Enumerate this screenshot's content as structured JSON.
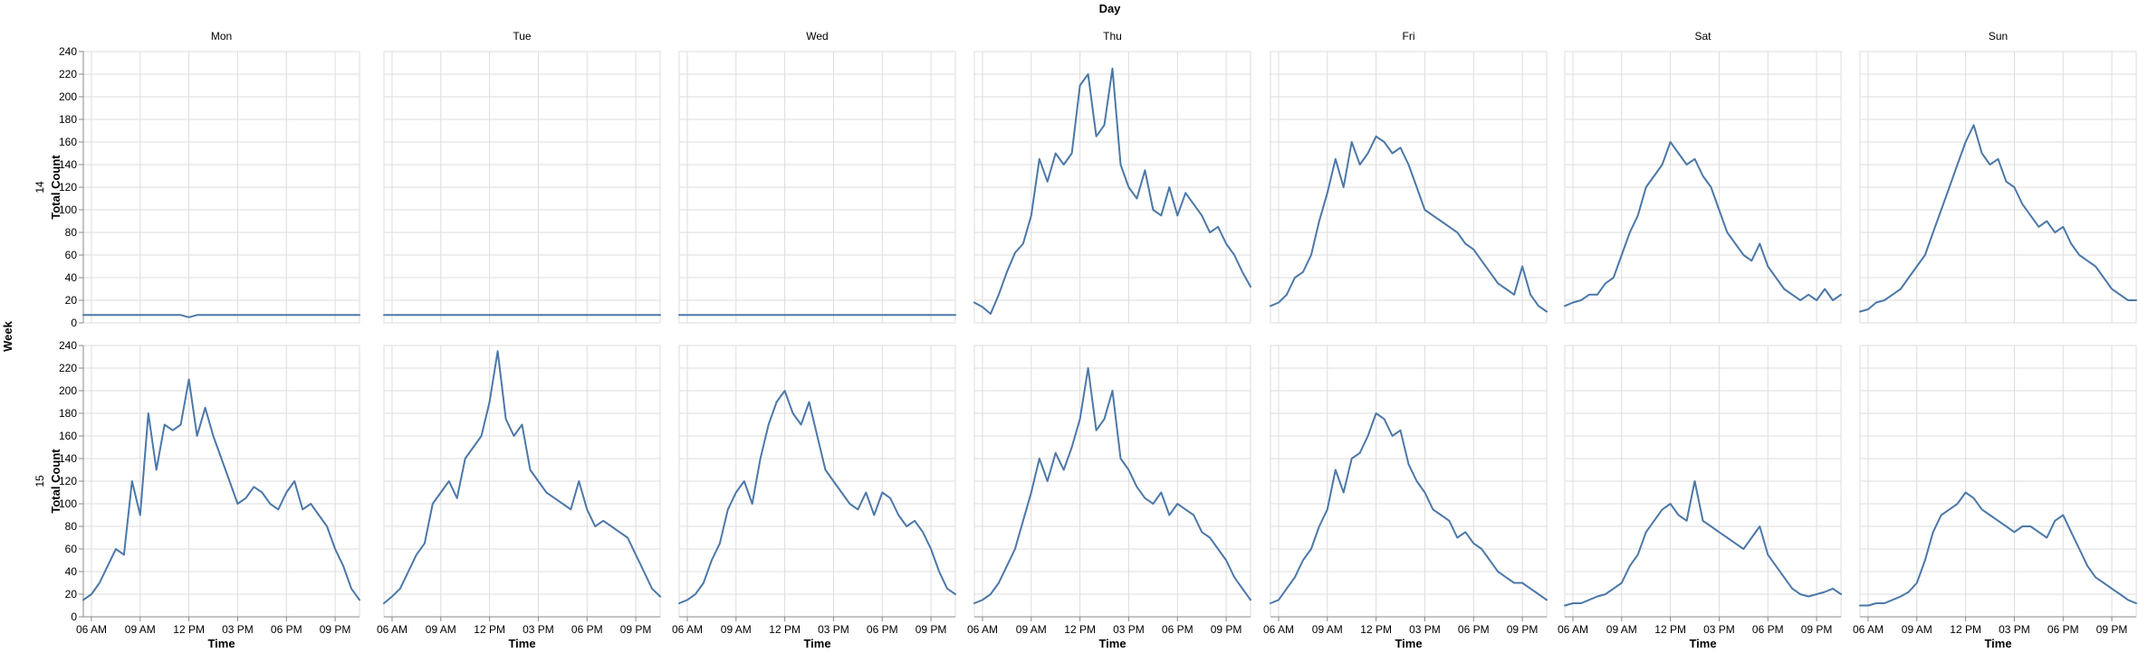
{
  "chart_data": {
    "type": "line",
    "facet_column_title": "Day",
    "facet_row_title": "Week",
    "columns": [
      "Mon",
      "Tue",
      "Wed",
      "Thu",
      "Fri",
      "Sat",
      "Sun"
    ],
    "rows": [
      "14",
      "15"
    ],
    "xlabel": "Time",
    "ylabel": "Total Count",
    "x_domain_hours": [
      5.5,
      22.5
    ],
    "x_ticks": [
      {
        "hour": 6,
        "label": "06 AM"
      },
      {
        "hour": 9,
        "label": "09 AM"
      },
      {
        "hour": 12,
        "label": "12 PM"
      },
      {
        "hour": 15,
        "label": "03 PM"
      },
      {
        "hour": 18,
        "label": "06 PM"
      },
      {
        "hour": 21,
        "label": "09 PM"
      }
    ],
    "ylim": [
      0,
      240
    ],
    "y_ticks": [
      0,
      20,
      40,
      60,
      80,
      100,
      120,
      140,
      160,
      180,
      200,
      220,
      240
    ],
    "grid": true,
    "line_color": "#4c78a8",
    "x_hours": [
      5.5,
      6,
      6.5,
      7,
      7.5,
      8,
      8.5,
      9,
      9.5,
      10,
      10.5,
      11,
      11.5,
      12,
      12.5,
      13,
      13.5,
      14,
      14.5,
      15,
      15.5,
      16,
      16.5,
      17,
      17.5,
      18,
      18.5,
      19,
      19.5,
      20,
      20.5,
      21,
      21.5,
      22,
      22.5
    ],
    "panels": [
      {
        "week": "14",
        "day": "Mon",
        "values": [
          7,
          7,
          7,
          7,
          7,
          7,
          7,
          7,
          7,
          7,
          7,
          7,
          7,
          5,
          7,
          7,
          7,
          7,
          7,
          7,
          7,
          7,
          7,
          7,
          7,
          7,
          7,
          7,
          7,
          7,
          7,
          7,
          7,
          7,
          7
        ]
      },
      {
        "week": "14",
        "day": "Tue",
        "values": [
          7,
          7,
          7,
          7,
          7,
          7,
          7,
          7,
          7,
          7,
          7,
          7,
          7,
          7,
          7,
          7,
          7,
          7,
          7,
          7,
          7,
          7,
          7,
          7,
          7,
          7,
          7,
          7,
          7,
          7,
          7,
          7,
          7,
          7,
          7
        ]
      },
      {
        "week": "14",
        "day": "Wed",
        "values": [
          7,
          7,
          7,
          7,
          7,
          7,
          7,
          7,
          7,
          7,
          7,
          7,
          7,
          7,
          7,
          7,
          7,
          7,
          7,
          7,
          7,
          7,
          7,
          7,
          7,
          7,
          7,
          7,
          7,
          7,
          7,
          7,
          7,
          7,
          7
        ]
      },
      {
        "week": "14",
        "day": "Thu",
        "values": [
          18,
          14,
          8,
          25,
          45,
          62,
          70,
          95,
          145,
          125,
          150,
          140,
          150,
          210,
          220,
          165,
          175,
          225,
          140,
          120,
          110,
          135,
          100,
          95,
          120,
          95,
          115,
          105,
          95,
          80,
          85,
          70,
          60,
          45,
          32
        ]
      },
      {
        "week": "14",
        "day": "Fri",
        "values": [
          15,
          18,
          25,
          40,
          45,
          60,
          90,
          115,
          145,
          120,
          160,
          140,
          150,
          165,
          160,
          150,
          155,
          140,
          120,
          100,
          95,
          90,
          85,
          80,
          70,
          65,
          55,
          45,
          35,
          30,
          25,
          50,
          25,
          15,
          10
        ]
      },
      {
        "week": "14",
        "day": "Sat",
        "values": [
          15,
          18,
          20,
          25,
          25,
          35,
          40,
          60,
          80,
          95,
          120,
          130,
          140,
          160,
          150,
          140,
          145,
          130,
          120,
          100,
          80,
          70,
          60,
          55,
          70,
          50,
          40,
          30,
          25,
          20,
          25,
          20,
          30,
          20,
          25
        ]
      },
      {
        "week": "14",
        "day": "Sun",
        "values": [
          10,
          12,
          18,
          20,
          25,
          30,
          40,
          50,
          60,
          80,
          100,
          120,
          140,
          160,
          175,
          150,
          140,
          145,
          125,
          120,
          105,
          95,
          85,
          90,
          80,
          85,
          70,
          60,
          55,
          50,
          40,
          30,
          25,
          20,
          20
        ]
      },
      {
        "week": "15",
        "day": "Mon",
        "values": [
          15,
          20,
          30,
          45,
          60,
          55,
          120,
          90,
          180,
          130,
          170,
          165,
          170,
          210,
          160,
          185,
          160,
          140,
          120,
          100,
          105,
          115,
          110,
          100,
          95,
          110,
          120,
          95,
          100,
          90,
          80,
          60,
          45,
          25,
          15
        ]
      },
      {
        "week": "15",
        "day": "Tue",
        "values": [
          12,
          18,
          25,
          40,
          55,
          65,
          100,
          110,
          120,
          105,
          140,
          150,
          160,
          190,
          235,
          175,
          160,
          170,
          130,
          120,
          110,
          105,
          100,
          95,
          120,
          95,
          80,
          85,
          80,
          75,
          70,
          55,
          40,
          25,
          18
        ]
      },
      {
        "week": "15",
        "day": "Wed",
        "values": [
          12,
          15,
          20,
          30,
          50,
          65,
          95,
          110,
          120,
          100,
          140,
          170,
          190,
          200,
          180,
          170,
          190,
          160,
          130,
          120,
          110,
          100,
          95,
          110,
          90,
          110,
          105,
          90,
          80,
          85,
          75,
          60,
          40,
          25,
          20
        ]
      },
      {
        "week": "15",
        "day": "Thu",
        "values": [
          12,
          15,
          20,
          30,
          45,
          60,
          85,
          110,
          140,
          120,
          145,
          130,
          150,
          175,
          220,
          165,
          175,
          200,
          140,
          130,
          115,
          105,
          100,
          110,
          90,
          100,
          95,
          90,
          75,
          70,
          60,
          50,
          35,
          25,
          15
        ]
      },
      {
        "week": "15",
        "day": "Fri",
        "values": [
          12,
          15,
          25,
          35,
          50,
          60,
          80,
          95,
          130,
          110,
          140,
          145,
          160,
          180,
          175,
          160,
          165,
          135,
          120,
          110,
          95,
          90,
          85,
          70,
          75,
          65,
          60,
          50,
          40,
          35,
          30,
          30,
          25,
          20,
          15
        ]
      },
      {
        "week": "15",
        "day": "Sat",
        "values": [
          10,
          12,
          12,
          15,
          18,
          20,
          25,
          30,
          45,
          55,
          75,
          85,
          95,
          100,
          90,
          85,
          120,
          85,
          80,
          75,
          70,
          65,
          60,
          70,
          80,
          55,
          45,
          35,
          25,
          20,
          18,
          20,
          22,
          25,
          20
        ]
      },
      {
        "week": "15",
        "day": "Sun",
        "values": [
          10,
          10,
          12,
          12,
          15,
          18,
          22,
          30,
          50,
          75,
          90,
          95,
          100,
          110,
          105,
          95,
          90,
          85,
          80,
          75,
          80,
          80,
          75,
          70,
          85,
          90,
          75,
          60,
          45,
          35,
          30,
          25,
          20,
          15,
          12
        ]
      }
    ]
  }
}
